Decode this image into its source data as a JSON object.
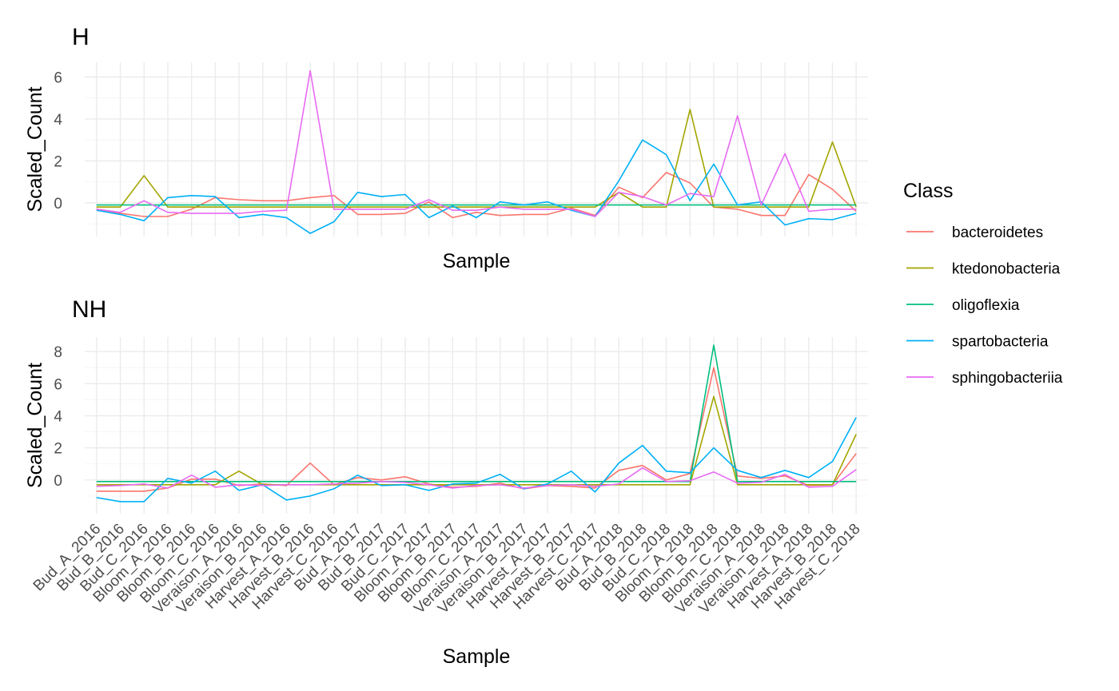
{
  "chart_data": {
    "type": "line",
    "legend": {
      "title": "Class",
      "position": "right",
      "entries": [
        {
          "name": "bacteroidetes",
          "color": "#F8766D"
        },
        {
          "name": "ktedonobacteria",
          "color": "#A3A500"
        },
        {
          "name": "oligoflexia",
          "color": "#00BF7D"
        },
        {
          "name": "spartobacteria",
          "color": "#00B0F6"
        },
        {
          "name": "sphingobacteriia",
          "color": "#E76BF3"
        }
      ]
    },
    "x": [
      "Bud_A_2016",
      "Bud_B_2016",
      "Bud_C_2016",
      "Bloom_A_2016",
      "Bloom_B_2016",
      "Bloom_C_2016",
      "Veraison_A_2016",
      "Veraison_B_2016",
      "Harvest_A_2016",
      "Harvest_B_2016",
      "Harvest_C_2016",
      "Bud_A_2017",
      "Bud_B_2017",
      "Bud_C_2017",
      "Bloom_A_2017",
      "Bloom_B_2017",
      "Bloom_C_2017",
      "Veraison_A_2017",
      "Veraison_B_2017",
      "Harvest_A_2017",
      "Harvest_B_2017",
      "Harvest_C_2017",
      "Bud_A_2018",
      "Bud_B_2018",
      "Bud_C_2018",
      "Bloom_A_2018",
      "Bloom_B_2018",
      "Bloom_C_2018",
      "Veraison_A_2018",
      "Veraison_B_2018",
      "Harvest_A_2018",
      "Harvest_B_2018",
      "Harvest_C_2018"
    ],
    "grid": true,
    "panels": [
      {
        "title": "H",
        "xlabel": "Sample",
        "ylabel": "Scaled_Count",
        "show_x_ticks": false,
        "ylim": [
          -1.6,
          6.7
        ],
        "yticks": [
          0,
          2,
          4,
          6
        ],
        "series": [
          {
            "name": "bacteroidetes",
            "values": [
              -0.3,
              -0.5,
              -0.65,
              -0.65,
              -0.3,
              0.25,
              0.15,
              0.1,
              0.1,
              0.25,
              0.35,
              -0.55,
              -0.55,
              -0.5,
              0.05,
              -0.7,
              -0.45,
              -0.6,
              -0.55,
              -0.55,
              -0.25,
              -0.6,
              0.75,
              0.25,
              1.45,
              0.95,
              -0.2,
              -0.3,
              -0.6,
              -0.6,
              1.35,
              0.65,
              -0.4
            ]
          },
          {
            "name": "ktedonobacteria",
            "values": [
              -0.2,
              -0.2,
              1.3,
              -0.2,
              -0.2,
              -0.2,
              -0.2,
              -0.2,
              -0.2,
              -0.2,
              -0.2,
              -0.2,
              -0.2,
              -0.2,
              -0.2,
              -0.2,
              -0.2,
              -0.2,
              -0.2,
              -0.2,
              -0.2,
              -0.2,
              0.5,
              -0.2,
              -0.2,
              4.45,
              -0.2,
              -0.2,
              -0.2,
              -0.2,
              -0.2,
              2.9,
              -0.2
            ]
          },
          {
            "name": "oligoflexia",
            "values": [
              -0.1,
              -0.1,
              -0.1,
              -0.1,
              -0.1,
              -0.1,
              -0.1,
              -0.1,
              -0.1,
              -0.1,
              -0.1,
              -0.1,
              -0.1,
              -0.1,
              -0.1,
              -0.1,
              -0.1,
              -0.1,
              -0.1,
              -0.1,
              -0.1,
              -0.1,
              -0.1,
              -0.1,
              -0.1,
              -0.1,
              -0.1,
              -0.1,
              -0.1,
              -0.1,
              -0.1,
              -0.1,
              -0.1
            ]
          },
          {
            "name": "spartobacteria",
            "values": [
              -0.35,
              -0.55,
              -0.85,
              0.25,
              0.35,
              0.3,
              -0.7,
              -0.55,
              -0.7,
              -1.45,
              -0.9,
              0.5,
              0.3,
              0.4,
              -0.7,
              -0.15,
              -0.7,
              0.05,
              -0.1,
              0.05,
              -0.35,
              -0.65,
              1.05,
              3.0,
              2.3,
              0.1,
              1.85,
              -0.1,
              0.05,
              -1.05,
              -0.75,
              -0.8,
              -0.5
            ]
          },
          {
            "name": "sphingobacteriia",
            "values": [
              -0.3,
              -0.45,
              0.1,
              -0.45,
              -0.5,
              -0.5,
              -0.5,
              -0.4,
              -0.35,
              6.3,
              -0.3,
              -0.3,
              -0.3,
              -0.3,
              0.15,
              -0.35,
              -0.35,
              -0.2,
              -0.3,
              -0.3,
              -0.3,
              -0.65,
              0.5,
              0.3,
              -0.1,
              0.45,
              0.3,
              4.15,
              -0.1,
              2.35,
              -0.4,
              -0.3,
              -0.3
            ]
          }
        ]
      },
      {
        "title": "NH",
        "xlabel": "Sample",
        "ylabel": "Scaled_Count",
        "show_x_ticks": true,
        "ylim": [
          -2.1,
          8.9
        ],
        "yticks": [
          0,
          2,
          4,
          6,
          8
        ],
        "series": [
          {
            "name": "bacteroidetes",
            "values": [
              -0.7,
              -0.7,
              -0.7,
              -0.5,
              0.05,
              0.05,
              -0.35,
              -0.25,
              -0.35,
              1.05,
              -0.3,
              0.15,
              0.0,
              0.2,
              -0.25,
              -0.45,
              -0.4,
              -0.2,
              -0.55,
              -0.35,
              -0.4,
              -0.5,
              0.6,
              0.9,
              0.0,
              0.4,
              7.0,
              0.25,
              0.1,
              0.25,
              -0.35,
              -0.3,
              1.65
            ]
          },
          {
            "name": "ktedonobacteria",
            "values": [
              -0.3,
              -0.3,
              -0.3,
              -0.3,
              -0.3,
              -0.3,
              0.55,
              -0.3,
              -0.3,
              -0.3,
              -0.3,
              -0.3,
              -0.3,
              -0.3,
              -0.3,
              -0.3,
              -0.3,
              -0.3,
              -0.3,
              -0.3,
              -0.3,
              -0.3,
              -0.3,
              -0.3,
              -0.3,
              -0.3,
              5.2,
              -0.3,
              -0.3,
              -0.3,
              -0.3,
              -0.3,
              2.85
            ]
          },
          {
            "name": "oligoflexia",
            "values": [
              -0.1,
              -0.1,
              -0.1,
              -0.1,
              -0.1,
              -0.1,
              -0.1,
              -0.1,
              -0.1,
              -0.1,
              -0.1,
              -0.1,
              -0.1,
              -0.1,
              -0.1,
              -0.1,
              -0.1,
              -0.1,
              -0.1,
              -0.1,
              -0.1,
              -0.1,
              -0.1,
              -0.1,
              -0.1,
              -0.1,
              8.4,
              -0.1,
              -0.1,
              -0.1,
              -0.1,
              -0.1,
              -0.1
            ]
          },
          {
            "name": "spartobacteria",
            "values": [
              -1.1,
              -1.35,
              -1.35,
              0.1,
              -0.2,
              0.55,
              -0.65,
              -0.3,
              -1.25,
              -1.0,
              -0.55,
              0.3,
              -0.35,
              -0.3,
              -0.65,
              -0.25,
              -0.2,
              0.35,
              -0.55,
              -0.25,
              0.55,
              -0.75,
              1.05,
              2.15,
              0.55,
              0.45,
              2.0,
              0.6,
              0.15,
              0.6,
              0.15,
              1.15,
              3.9
            ]
          },
          {
            "name": "sphingobacteriia",
            "values": [
              -0.4,
              -0.35,
              -0.25,
              -0.5,
              0.3,
              -0.45,
              -0.3,
              -0.35,
              -0.3,
              -0.3,
              -0.25,
              -0.2,
              -0.1,
              -0.15,
              -0.3,
              -0.5,
              -0.35,
              -0.3,
              -0.5,
              -0.35,
              -0.3,
              -0.4,
              -0.25,
              0.75,
              -0.1,
              -0.05,
              0.5,
              -0.2,
              -0.15,
              0.35,
              -0.45,
              -0.4,
              0.65
            ]
          }
        ]
      }
    ]
  }
}
